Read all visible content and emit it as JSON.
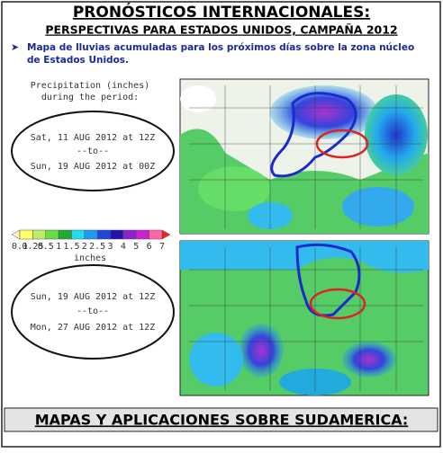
{
  "header": {
    "title": "PRONÓSTICOS INTERNACIONALES:",
    "subtitle": "PERSPECTIVAS PARA ESTADOS UNIDOS, CAMPAÑA 2012"
  },
  "bullet": "Mapa de lluvias acumuladas para los próximos días sobre la zona núcleo de Estados Unidos.",
  "legend": {
    "title_lines": [
      "Precipitation (inches)",
      "during the period:"
    ],
    "labels": [
      "0.1",
      "0.25",
      "0.5",
      "1",
      "1.5",
      "2",
      "2.5",
      "3",
      "4",
      "5",
      "6",
      "7"
    ],
    "unit": "inches"
  },
  "periods": [
    {
      "from": "Sat, 11 AUG 2012 at 12Z",
      "sep": "--to--",
      "to": "Sun, 19 AUG 2012 at 00Z"
    },
    {
      "from": "Sun, 19 AUG 2012 at 12Z",
      "sep": "--to--",
      "to": "Mon, 27 AUG 2012 at 12Z"
    }
  ],
  "footer": "MAPAS Y APLICACIONES SOBRE SUDAMERICA:"
}
